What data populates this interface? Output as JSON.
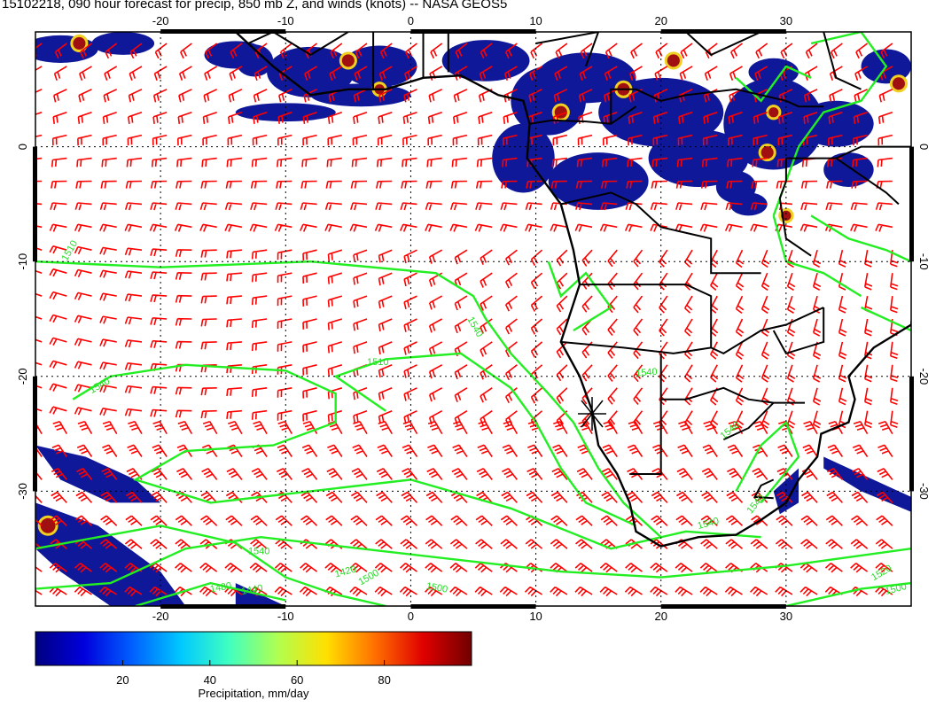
{
  "title": "15102218, 090 hour forecast for precip, 850 mb Z, and winds (knots) -- NASA GEOS5",
  "map": {
    "lon_range": [
      -30,
      40
    ],
    "lat_range": [
      -40,
      10
    ],
    "lon_ticks": [
      "-20",
      "-10",
      "0",
      "10",
      "20",
      "30"
    ],
    "lon_tick_values": [
      -20,
      -10,
      0,
      10,
      20,
      30
    ],
    "lat_ticks": [
      "0",
      "-10",
      "-20",
      "-30"
    ],
    "lat_tick_values": [
      0,
      -10,
      -20,
      -30
    ],
    "contour_labels": [
      "1510",
      "1540",
      "1510",
      "1540",
      "1540",
      "1540",
      "1540",
      "1540",
      "1540",
      "1500",
      "1480",
      "1440",
      "1420",
      "1500",
      "1520",
      "1500"
    ],
    "colors": {
      "contour": "#22ee22",
      "wind_barb": "#ff0000",
      "coastline": "#000000",
      "grid": "#000000"
    }
  },
  "colorbar": {
    "title": "Precipitation, mm/day",
    "ticks": [
      "20",
      "40",
      "60",
      "80"
    ],
    "tick_values": [
      20,
      40,
      60,
      80
    ],
    "range": [
      0,
      100
    ],
    "colors": [
      "#000080",
      "#0000dd",
      "#0060ff",
      "#00c8ff",
      "#40ffc0",
      "#b0ff50",
      "#ffe000",
      "#ff7000",
      "#e00000",
      "#700000"
    ]
  }
}
